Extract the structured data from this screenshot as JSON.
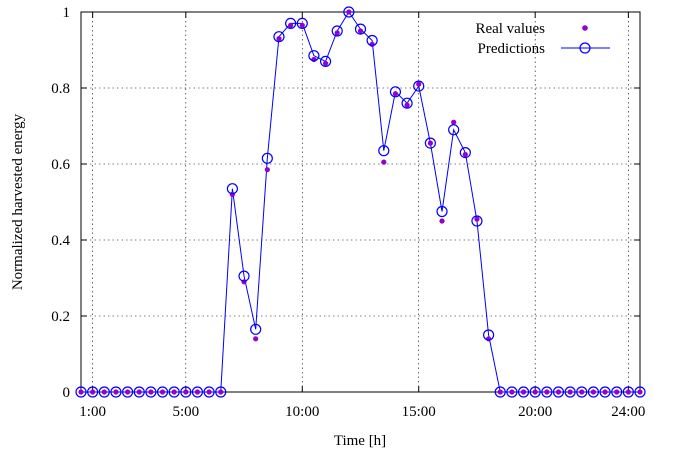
{
  "chart_data": {
    "type": "line",
    "xlabel": "Time [h]",
    "ylabel": "Normalized harvested energy",
    "xlim": [
      0.5,
      24.5
    ],
    "ylim": [
      0,
      1
    ],
    "grid": true,
    "legend_position": "top-right",
    "x_ticks": [
      {
        "value": 1,
        "label": "1:00"
      },
      {
        "value": 5,
        "label": "5:00"
      },
      {
        "value": 10,
        "label": "10:00"
      },
      {
        "value": 15,
        "label": "15:00"
      },
      {
        "value": 20,
        "label": "20:00"
      },
      {
        "value": 24,
        "label": "24:00"
      }
    ],
    "y_ticks": [
      {
        "value": 0,
        "label": "0"
      },
      {
        "value": 0.2,
        "label": "0.2"
      },
      {
        "value": 0.4,
        "label": "0.4"
      },
      {
        "value": 0.6,
        "label": "0.6"
      },
      {
        "value": 0.8,
        "label": "0.8"
      },
      {
        "value": 1,
        "label": "1"
      }
    ],
    "x": [
      0.5,
      1.0,
      1.5,
      2.0,
      2.5,
      3.0,
      3.5,
      4.0,
      4.5,
      5.0,
      5.5,
      6.0,
      6.5,
      7.0,
      7.5,
      8.0,
      8.5,
      9.0,
      9.5,
      10.0,
      10.5,
      11.0,
      11.5,
      12.0,
      12.5,
      13.0,
      13.5,
      14.0,
      14.5,
      15.0,
      15.5,
      16.0,
      16.5,
      17.0,
      17.5,
      18.0,
      18.5,
      19.0,
      19.5,
      20.0,
      20.5,
      21.0,
      21.5,
      22.0,
      22.5,
      23.0,
      23.5,
      24.0,
      24.5
    ],
    "series": [
      {
        "name": "Real values",
        "style": "points",
        "color": "#9400d3",
        "values": [
          0,
          0,
          0,
          0,
          0,
          0,
          0,
          0,
          0,
          0,
          0,
          0,
          0,
          0.52,
          0.29,
          0.14,
          0.585,
          0.93,
          0.965,
          0.965,
          0.875,
          0.865,
          0.945,
          1.0,
          0.95,
          0.915,
          0.605,
          0.785,
          0.755,
          0.81,
          0.655,
          0.45,
          0.71,
          0.625,
          0.455,
          0.14,
          0,
          0,
          0,
          0,
          0,
          0,
          0,
          0,
          0,
          0,
          0,
          0,
          0
        ]
      },
      {
        "name": "Predictions",
        "style": "linespoints",
        "color": "#0000ff",
        "values": [
          0,
          0,
          0,
          0,
          0,
          0,
          0,
          0,
          0,
          0,
          0,
          0,
          0,
          0.535,
          0.305,
          0.165,
          0.615,
          0.935,
          0.97,
          0.97,
          0.885,
          0.87,
          0.95,
          1.0,
          0.955,
          0.925,
          0.635,
          0.79,
          0.76,
          0.805,
          0.655,
          0.475,
          0.69,
          0.63,
          0.45,
          0.15,
          0,
          0,
          0,
          0,
          0,
          0,
          0,
          0,
          0,
          0,
          0,
          0,
          0
        ]
      }
    ]
  }
}
